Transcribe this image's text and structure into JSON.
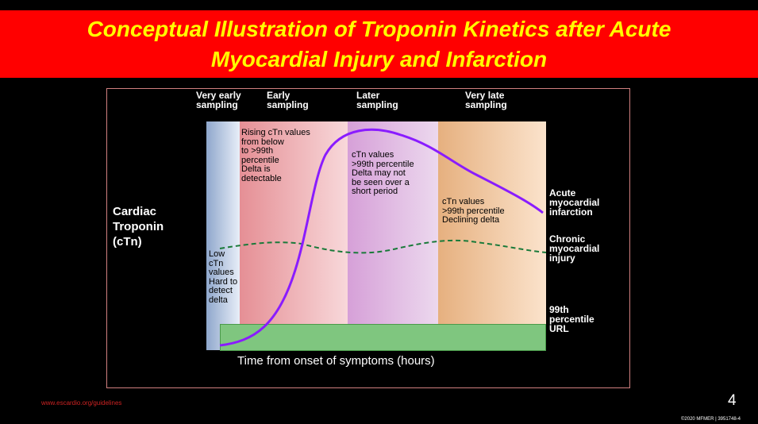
{
  "title": {
    "line1": "Conceptual Illustration of Troponin Kinetics after Acute",
    "line2": "Myocardial Injury and Infarction"
  },
  "colors": {
    "title_bg": "#ff0000",
    "title_text": "#ffff00",
    "ami_curve": "#8a1cff",
    "chronic_curve": "#1a7a3a",
    "url_band": "#7fc67f"
  },
  "columns": [
    {
      "label": "Very early\nsampling"
    },
    {
      "label": "Early\nsampling"
    },
    {
      "label": "Later\nsampling"
    },
    {
      "label": "Very late\nsampling"
    }
  ],
  "zone_notes": {
    "very_early": "Low\ncTn\nvalues\nHard to\ndetect\ndelta",
    "early": "Rising cTn values\nfrom below\nto >99th\npercentile\nDelta is\ndetectable",
    "later": "cTn values\n>99th percentile\nDelta may not\nbe seen over a\nshort period",
    "very_late": "cTn values\n>99th percentile\nDeclining delta"
  },
  "y_axis_label": "Cardiac\nTroponin\n(cTn)",
  "x_axis_label": "Time from onset of symptoms (hours)",
  "legend": {
    "ami": "Acute\nmyocardial\ninfarction",
    "chronic": "Chronic\nmyocardial\ninjury",
    "url": "99th\npercentile\nURL"
  },
  "footer": {
    "url": "www.escardio.org/guidelines",
    "page": "4",
    "copyright": "©2020 MFMER  |  3951748-4"
  }
}
